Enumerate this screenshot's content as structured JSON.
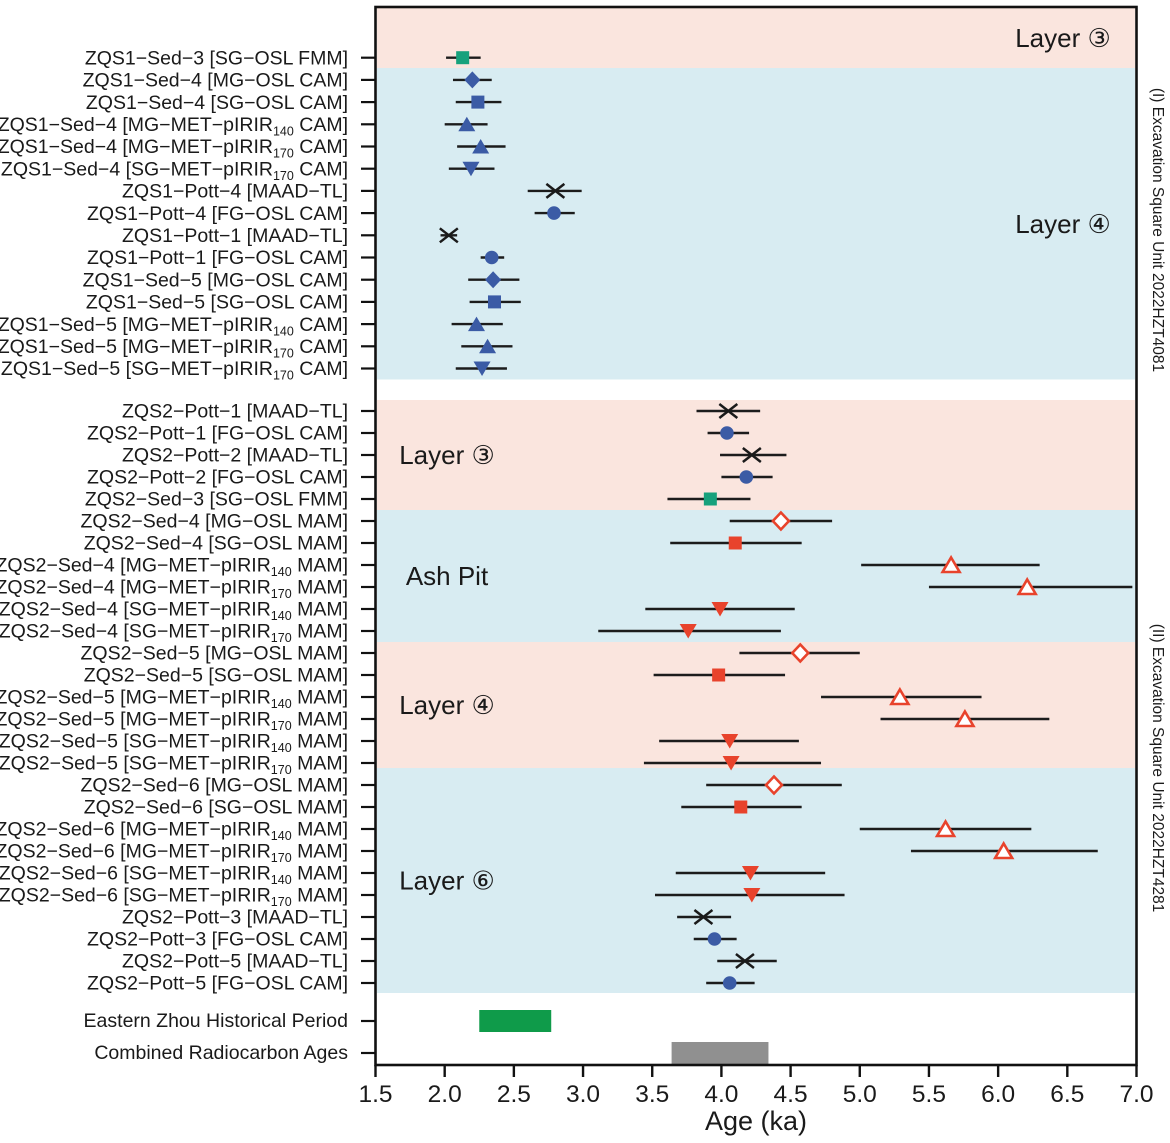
{
  "chart_data": {
    "type": "scatter",
    "subtype": "forest-interval-plot",
    "title": "",
    "xlabel": "Age (ka)",
    "xlim": [
      1.5,
      7.0
    ],
    "x_ticks": [
      "1.5",
      "2.0",
      "2.5",
      "3.0",
      "3.5",
      "4.0",
      "4.5",
      "5.0",
      "5.5",
      "6.0",
      "6.5",
      "7.0"
    ],
    "grid": false,
    "legend_position": "none",
    "side_labels": [
      "(I) Excavation Square Unit 2022HZT4081",
      "(II) Excavation Square Unit 2022HZT4281"
    ],
    "colors": {
      "band_pink": "#FAE5DE",
      "band_blue": "#D8ECF2",
      "teal": "#17A17C",
      "blue": "#3B5BA5",
      "red": "#E8432C",
      "open_fill": "#FFFFFF",
      "black": "#1A1A1A",
      "green_bar": "#0F9B4A",
      "gray_bar": "#909090"
    },
    "bands": [
      {
        "label": "Layer ③",
        "color": "pink",
        "section": 1,
        "label_side": "right"
      },
      {
        "label": "Layer ④",
        "color": "blue",
        "section": 1,
        "label_side": "right"
      },
      {
        "label": "Layer ③",
        "color": "pink",
        "section": 2,
        "label_side": "left"
      },
      {
        "label": "Ash Pit",
        "color": "blue",
        "section": 2,
        "label_side": "left"
      },
      {
        "label": "Layer ④",
        "color": "pink",
        "section": 2,
        "label_side": "left"
      },
      {
        "label": "Layer ⑥",
        "color": "blue",
        "section": 2,
        "label_side": "left"
      }
    ],
    "rows": [
      {
        "label": "ZQS1−Sed−3 [SG−OSL FMM]",
        "sub": "",
        "label2": "",
        "symbol": "square",
        "style": "teal",
        "age": 2.13,
        "ci": [
          2.01,
          2.26
        ],
        "band": 0
      },
      {
        "label": "ZQS1−Sed−4 [MG−OSL CAM]",
        "sub": "",
        "label2": "",
        "symbol": "diamond",
        "style": "blue",
        "age": 2.2,
        "ci": [
          2.06,
          2.34
        ],
        "band": 1
      },
      {
        "label": "ZQS1−Sed−4 [SG−OSL CAM]",
        "sub": "",
        "label2": "",
        "symbol": "square",
        "style": "blue",
        "age": 2.24,
        "ci": [
          2.08,
          2.41
        ],
        "band": 1
      },
      {
        "label": "ZQS1−Sed−4 [MG−MET−pIRIR",
        "sub": "140",
        "label2": " CAM]",
        "symbol": "triangle-up",
        "style": "blue",
        "age": 2.16,
        "ci": [
          2.0,
          2.31
        ],
        "band": 1
      },
      {
        "label": "ZQS1−Sed−4 [MG−MET−pIRIR",
        "sub": "170",
        "label2": " CAM]",
        "symbol": "triangle-up",
        "style": "blue",
        "age": 2.26,
        "ci": [
          2.09,
          2.44
        ],
        "band": 1
      },
      {
        "label": "ZQS1−Sed−4 [SG−MET−pIRIR",
        "sub": "170",
        "label2": " CAM]",
        "symbol": "triangle-down",
        "style": "blue",
        "age": 2.19,
        "ci": [
          2.03,
          2.36
        ],
        "band": 1
      },
      {
        "label": "ZQS1−Pott−4 [MAAD−TL]",
        "sub": "",
        "label2": "",
        "symbol": "x-cross",
        "style": "black",
        "age": 2.8,
        "ci": [
          2.6,
          2.99
        ],
        "band": 1
      },
      {
        "label": "ZQS1−Pott−4 [FG−OSL CAM]",
        "sub": "",
        "label2": "",
        "symbol": "circle",
        "style": "blue",
        "age": 2.79,
        "ci": [
          2.65,
          2.94
        ],
        "band": 1
      },
      {
        "label": "ZQS1−Pott−1 [MAAD−TL]",
        "sub": "",
        "label2": "",
        "symbol": "x-cross",
        "style": "black",
        "age": 2.03,
        "ci": [
          1.97,
          2.09
        ],
        "band": 1
      },
      {
        "label": "ZQS1−Pott−1 [FG−OSL CAM]",
        "sub": "",
        "label2": "",
        "symbol": "circle",
        "style": "blue",
        "age": 2.34,
        "ci": [
          2.26,
          2.43
        ],
        "band": 1
      },
      {
        "label": "ZQS1−Sed−5 [MG−OSL CAM]",
        "sub": "",
        "label2": "",
        "symbol": "diamond",
        "style": "blue",
        "age": 2.35,
        "ci": [
          2.17,
          2.54
        ],
        "band": 1
      },
      {
        "label": "ZQS1−Sed−5 [SG−OSL CAM]",
        "sub": "",
        "label2": "",
        "symbol": "square",
        "style": "blue",
        "age": 2.36,
        "ci": [
          2.18,
          2.55
        ],
        "band": 1
      },
      {
        "label": "ZQS1−Sed−5 [MG−MET−pIRIR",
        "sub": "140",
        "label2": " CAM]",
        "symbol": "triangle-up",
        "style": "blue",
        "age": 2.23,
        "ci": [
          2.05,
          2.42
        ],
        "band": 1
      },
      {
        "label": "ZQS1−Sed−5 [MG−MET−pIRIR",
        "sub": "170",
        "label2": " CAM]",
        "symbol": "triangle-up",
        "style": "blue",
        "age": 2.31,
        "ci": [
          2.12,
          2.49
        ],
        "band": 1
      },
      {
        "label": "ZQS1−Sed−5 [SG−MET−pIRIR",
        "sub": "170",
        "label2": " CAM]",
        "symbol": "triangle-down",
        "style": "blue",
        "age": 2.27,
        "ci": [
          2.08,
          2.45
        ],
        "band": 1
      },
      {
        "label": "ZQS2−Pott−1 [MAAD−TL]",
        "sub": "",
        "label2": "",
        "symbol": "x-cross",
        "style": "black",
        "age": 4.05,
        "ci": [
          3.82,
          4.28
        ],
        "band": 2
      },
      {
        "label": "ZQS2−Pott−1 [FG−OSL CAM]",
        "sub": "",
        "label2": "",
        "symbol": "circle",
        "style": "blue",
        "age": 4.04,
        "ci": [
          3.9,
          4.2
        ],
        "band": 2
      },
      {
        "label": "ZQS2−Pott−2 [MAAD−TL]",
        "sub": "",
        "label2": "",
        "symbol": "x-cross",
        "style": "black",
        "age": 4.22,
        "ci": [
          3.99,
          4.47
        ],
        "band": 2
      },
      {
        "label": "ZQS2−Pott−2 [FG−OSL CAM]",
        "sub": "",
        "label2": "",
        "symbol": "circle",
        "style": "blue",
        "age": 4.18,
        "ci": [
          4.0,
          4.37
        ],
        "band": 2
      },
      {
        "label": "ZQS2−Sed−3 [SG−OSL FMM]",
        "sub": "",
        "label2": "",
        "symbol": "square",
        "style": "teal",
        "age": 3.92,
        "ci": [
          3.61,
          4.21
        ],
        "band": 2
      },
      {
        "label": "ZQS2−Sed−4 [MG−OSL MAM]",
        "sub": "",
        "label2": "",
        "symbol": "diamond",
        "style": "open-red",
        "age": 4.43,
        "ci": [
          4.06,
          4.8
        ],
        "band": 3
      },
      {
        "label": "ZQS2−Sed−4 [SG−OSL MAM]",
        "sub": "",
        "label2": "",
        "symbol": "square",
        "style": "red",
        "age": 4.1,
        "ci": [
          3.63,
          4.58
        ],
        "band": 3
      },
      {
        "label": "ZQS2−Sed−4 [MG−MET−pIRIR",
        "sub": "140",
        "label2": " MAM]",
        "symbol": "triangle-up",
        "style": "open-red",
        "age": 5.66,
        "ci": [
          5.01,
          6.3
        ],
        "band": 3
      },
      {
        "label": "ZQS2−Sed−4 [MG−MET−pIRIR",
        "sub": "170",
        "label2": " MAM]",
        "symbol": "triangle-up",
        "style": "open-red",
        "age": 6.21,
        "ci": [
          5.5,
          6.97
        ],
        "band": 3
      },
      {
        "label": "ZQS2−Sed−4 [SG−MET−pIRIR",
        "sub": "140",
        "label2": " MAM]",
        "symbol": "triangle-down",
        "style": "red",
        "age": 3.99,
        "ci": [
          3.45,
          4.53
        ],
        "band": 3
      },
      {
        "label": "ZQS2−Sed−4 [SG−MET−pIRIR",
        "sub": "170",
        "label2": " MAM]",
        "symbol": "triangle-down",
        "style": "red",
        "age": 3.76,
        "ci": [
          3.11,
          4.43
        ],
        "band": 3
      },
      {
        "label": "ZQS2−Sed−5 [MG−OSL MAM]",
        "sub": "",
        "label2": "",
        "symbol": "diamond",
        "style": "open-red",
        "age": 4.57,
        "ci": [
          4.13,
          5.0
        ],
        "band": 4
      },
      {
        "label": "ZQS2−Sed−5 [SG−OSL MAM]",
        "sub": "",
        "label2": "",
        "symbol": "square",
        "style": "red",
        "age": 3.98,
        "ci": [
          3.51,
          4.46
        ],
        "band": 4
      },
      {
        "label": "ZQS2−Sed−5 [MG−MET−pIRIR",
        "sub": "140",
        "label2": " MAM]",
        "symbol": "triangle-up",
        "style": "open-red",
        "age": 5.29,
        "ci": [
          4.72,
          5.88
        ],
        "band": 4
      },
      {
        "label": "ZQS2−Sed−5 [MG−MET−pIRIR",
        "sub": "170",
        "label2": " MAM]",
        "symbol": "triangle-up",
        "style": "open-red",
        "age": 5.76,
        "ci": [
          5.15,
          6.37
        ],
        "band": 4
      },
      {
        "label": "ZQS2−Sed−5 [SG−MET−pIRIR",
        "sub": "140",
        "label2": " MAM]",
        "symbol": "triangle-down",
        "style": "red",
        "age": 4.06,
        "ci": [
          3.55,
          4.56
        ],
        "band": 4
      },
      {
        "label": "ZQS2−Sed−5 [SG−MET−pIRIR",
        "sub": "170",
        "label2": " MAM]",
        "symbol": "triangle-down",
        "style": "red",
        "age": 4.07,
        "ci": [
          3.44,
          4.72
        ],
        "band": 4
      },
      {
        "label": "ZQS2−Sed−6 [MG−OSL MAM]",
        "sub": "",
        "label2": "",
        "symbol": "diamond",
        "style": "open-red",
        "age": 4.38,
        "ci": [
          3.89,
          4.87
        ],
        "band": 5
      },
      {
        "label": "ZQS2−Sed−6 [SG−OSL MAM]",
        "sub": "",
        "label2": "",
        "symbol": "square",
        "style": "red",
        "age": 4.14,
        "ci": [
          3.71,
          4.58
        ],
        "band": 5
      },
      {
        "label": "ZQS2−Sed−6 [MG−MET−pIRIR",
        "sub": "140",
        "label2": " MAM]",
        "symbol": "triangle-up",
        "style": "open-red",
        "age": 5.62,
        "ci": [
          5.0,
          6.24
        ],
        "band": 5
      },
      {
        "label": "ZQS2−Sed−6 [MG−MET−pIRIR",
        "sub": "170",
        "label2": " MAM]",
        "symbol": "triangle-up",
        "style": "open-red",
        "age": 6.04,
        "ci": [
          5.37,
          6.72
        ],
        "band": 5
      },
      {
        "label": "ZQS2−Sed−6 [SG−MET−pIRIR",
        "sub": "140",
        "label2": " MAM]",
        "symbol": "triangle-down",
        "style": "red",
        "age": 4.21,
        "ci": [
          3.67,
          4.75
        ],
        "band": 5
      },
      {
        "label": "ZQS2−Sed−6 [SG−MET−pIRIR",
        "sub": "170",
        "label2": " MAM]",
        "symbol": "triangle-down",
        "style": "red",
        "age": 4.22,
        "ci": [
          3.52,
          4.89
        ],
        "band": 5
      },
      {
        "label": "ZQS2−Pott−3 [MAAD−TL]",
        "sub": "",
        "label2": "",
        "symbol": "x-cross",
        "style": "black",
        "age": 3.87,
        "ci": [
          3.68,
          4.07
        ],
        "band": 5
      },
      {
        "label": "ZQS2−Pott−3 [FG−OSL CAM]",
        "sub": "",
        "label2": "",
        "symbol": "circle",
        "style": "blue",
        "age": 3.95,
        "ci": [
          3.8,
          4.11
        ],
        "band": 5
      },
      {
        "label": "ZQS2−Pott−5 [MAAD−TL]",
        "sub": "",
        "label2": "",
        "symbol": "x-cross",
        "style": "black",
        "age": 4.17,
        "ci": [
          3.97,
          4.4
        ],
        "band": 5
      },
      {
        "label": "ZQS2−Pott−5 [FG−OSL CAM]",
        "sub": "",
        "label2": "",
        "symbol": "circle",
        "style": "blue",
        "age": 4.06,
        "ci": [
          3.89,
          4.24
        ],
        "band": 5
      }
    ],
    "period_bars": [
      {
        "label": "Eastern Zhou Historical Period",
        "range": [
          2.25,
          2.77
        ],
        "color": "green_bar"
      },
      {
        "label": "Combined Radiocarbon Ages",
        "range": [
          3.64,
          4.34
        ],
        "color": "gray_bar"
      }
    ]
  }
}
